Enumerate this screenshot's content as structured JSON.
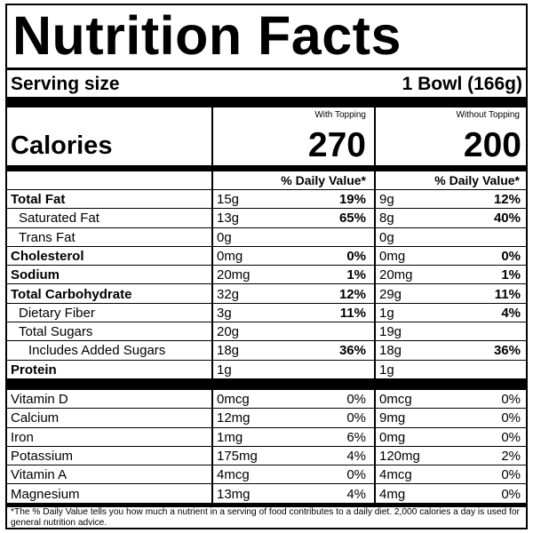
{
  "title": "Nutrition Facts",
  "serving": {
    "label": "Serving size",
    "value": "1 Bowl (166g)"
  },
  "columns": [
    {
      "heading": "With Topping",
      "calories": "270",
      "dv_heading": "% Daily Value*"
    },
    {
      "heading": "Without Topping",
      "calories": "200",
      "dv_heading": "% Daily Value*"
    }
  ],
  "calories_label": "Calories",
  "nutrients": [
    {
      "name": "Total Fat",
      "bold": true,
      "indent": 0,
      "with": {
        "amount": "15g",
        "dv": "19%"
      },
      "without": {
        "amount": "9g",
        "dv": "12%"
      }
    },
    {
      "name": "Saturated Fat",
      "bold": false,
      "indent": 1,
      "with": {
        "amount": "13g",
        "dv": "65%"
      },
      "without": {
        "amount": "8g",
        "dv": "40%"
      }
    },
    {
      "name": "Trans Fat",
      "bold": false,
      "indent": 1,
      "with": {
        "amount": "0g",
        "dv": ""
      },
      "without": {
        "amount": "0g",
        "dv": ""
      }
    },
    {
      "name": "Cholesterol",
      "bold": true,
      "indent": 0,
      "with": {
        "amount": "0mg",
        "dv": "0%"
      },
      "without": {
        "amount": "0mg",
        "dv": "0%"
      }
    },
    {
      "name": "Sodium",
      "bold": true,
      "indent": 0,
      "with": {
        "amount": "20mg",
        "dv": "1%"
      },
      "without": {
        "amount": "20mg",
        "dv": "1%"
      }
    },
    {
      "name": "Total Carbohydrate",
      "bold": true,
      "indent": 0,
      "with": {
        "amount": "32g",
        "dv": "12%"
      },
      "without": {
        "amount": "29g",
        "dv": "11%"
      }
    },
    {
      "name": "Dietary Fiber",
      "bold": false,
      "indent": 1,
      "with": {
        "amount": "3g",
        "dv": "11%"
      },
      "without": {
        "amount": "1g",
        "dv": "4%"
      }
    },
    {
      "name": "Total Sugars",
      "bold": false,
      "indent": 1,
      "with": {
        "amount": "20g",
        "dv": ""
      },
      "without": {
        "amount": "19g",
        "dv": ""
      }
    },
    {
      "name": "Includes Added Sugars",
      "bold": false,
      "indent": 2,
      "with": {
        "amount": "18g",
        "dv": "36%"
      },
      "without": {
        "amount": "18g",
        "dv": "36%"
      }
    },
    {
      "name": "Protein",
      "bold": true,
      "indent": 0,
      "with": {
        "amount": "1g",
        "dv": ""
      },
      "without": {
        "amount": "1g",
        "dv": ""
      }
    }
  ],
  "vitamins": [
    {
      "name": "Vitamin D",
      "with": {
        "amount": "0mcg",
        "dv": "0%"
      },
      "without": {
        "amount": "0mcg",
        "dv": "0%"
      }
    },
    {
      "name": "Calcium",
      "with": {
        "amount": "12mg",
        "dv": "0%"
      },
      "without": {
        "amount": "9mg",
        "dv": "0%"
      }
    },
    {
      "name": "Iron",
      "with": {
        "amount": "1mg",
        "dv": "6%"
      },
      "without": {
        "amount": "0mg",
        "dv": "0%"
      }
    },
    {
      "name": "Potassium",
      "with": {
        "amount": "175mg",
        "dv": "4%"
      },
      "without": {
        "amount": "120mg",
        "dv": "2%"
      }
    },
    {
      "name": "Vitamin A",
      "with": {
        "amount": "4mcg",
        "dv": "0%"
      },
      "without": {
        "amount": "4mcg",
        "dv": "0%"
      }
    },
    {
      "name": "Magnesium",
      "with": {
        "amount": "13mg",
        "dv": "4%"
      },
      "without": {
        "amount": "4mg",
        "dv": "0%"
      }
    }
  ],
  "footnote": "*The % Daily Value tells you how much a nutrient in a serving of food contributes to a daily diet. 2,000 calories a day is used for general nutrition advice."
}
